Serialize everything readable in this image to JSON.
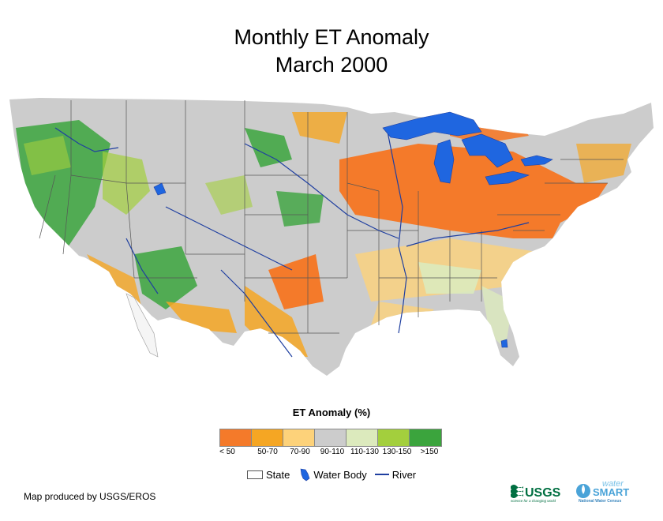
{
  "title_line1": "Monthly ET Anomaly",
  "title_line2": "March 2000",
  "legend": {
    "title": "ET Anomaly (%)",
    "classes": [
      {
        "label": "< 50",
        "color": "#f47a2a"
      },
      {
        "label": "50-70",
        "color": "#f5a623"
      },
      {
        "label": "70-90",
        "color": "#fdd27a"
      },
      {
        "label": "90-110",
        "color": "#cccccc"
      },
      {
        "label": "110-130",
        "color": "#dceabd"
      },
      {
        "label": "130-150",
        "color": "#a3cf3d"
      },
      {
        "label": ">150",
        "color": "#3ba43d"
      }
    ],
    "state_label": "State",
    "water_label": "Water Body",
    "river_label": "River"
  },
  "colors": {
    "water": "#1f66e0",
    "river": "#1f3fa0",
    "state_border": "#555555",
    "land_base": "#cccccc"
  },
  "credit": "Map produced by USGS/EROS",
  "logos": {
    "usgs": "USGS",
    "usgs_tagline": "science for a changing world",
    "watersmart_top": "water",
    "watersmart_main": "SMART",
    "watersmart_sub": "National Water Census"
  }
}
